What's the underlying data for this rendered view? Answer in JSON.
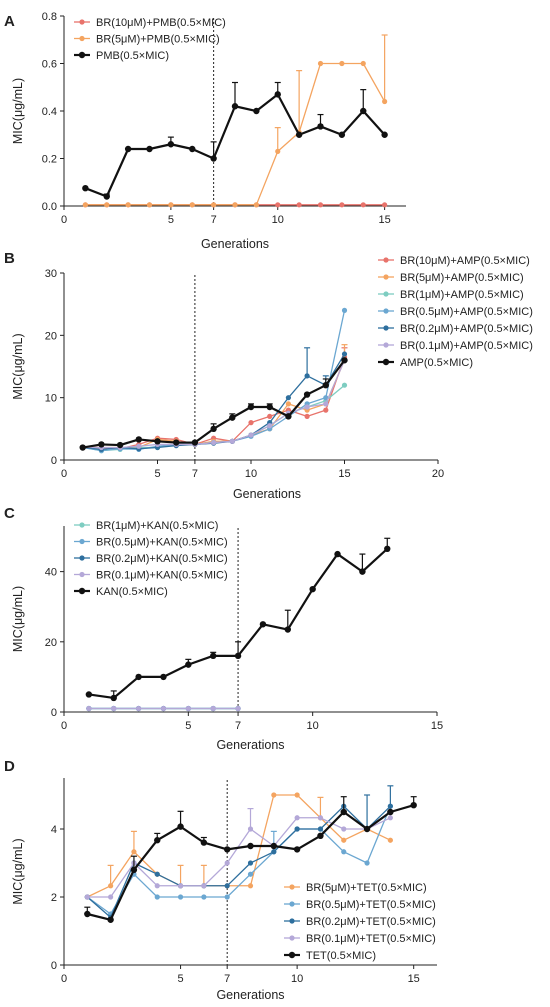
{
  "chart_data": [
    {
      "panel_label": "A",
      "type": "line",
      "xlabel": "Generations",
      "ylabel": "MIC(μg/mL)",
      "xlim": [
        0,
        16
      ],
      "ylim": [
        0,
        0.8
      ],
      "xticks": [
        0,
        5,
        7,
        10,
        15
      ],
      "yticks": [
        0.0,
        0.2,
        0.4,
        0.6,
        0.8
      ],
      "ytick_decimals": 1,
      "vline_x": 7,
      "legend_position": "top-left",
      "series": [
        {
          "name": "BR(10μM)+PMB(0.5×MIC)",
          "color": "#e8736b",
          "x": [
            1,
            2,
            3,
            4,
            5,
            6,
            7,
            8,
            9,
            10,
            11,
            12,
            13,
            14,
            15
          ],
          "y": [
            0.005,
            0.005,
            0.005,
            0.005,
            0.005,
            0.005,
            0.005,
            0.005,
            0.005,
            0.005,
            0.005,
            0.005,
            0.005,
            0.005,
            0.005
          ]
        },
        {
          "name": "BR(5μM)+PMB(0.5×MIC)",
          "color": "#f4a460",
          "x": [
            1,
            2,
            3,
            4,
            5,
            6,
            7,
            8,
            9,
            10,
            11,
            12,
            13,
            14,
            15
          ],
          "y": [
            0.005,
            0.005,
            0.005,
            0.005,
            0.005,
            0.005,
            0.005,
            0.005,
            0.005,
            0.23,
            0.31,
            0.6,
            0.6,
            0.6,
            0.44
          ],
          "err": [
            0,
            0,
            0,
            0,
            0,
            0,
            0,
            0,
            0,
            0.1,
            0.26,
            0,
            0,
            0,
            0.28
          ]
        },
        {
          "name": "PMB(0.5×MIC)",
          "color": "#111111",
          "bold": true,
          "x": [
            1,
            2,
            3,
            4,
            5,
            6,
            7,
            8,
            9,
            10,
            11,
            12,
            13,
            14,
            15
          ],
          "y": [
            0.075,
            0.04,
            0.24,
            0.24,
            0.26,
            0.24,
            0.2,
            0.42,
            0.4,
            0.47,
            0.3,
            0.335,
            0.3,
            0.4,
            0.3
          ],
          "err": [
            0,
            0.01,
            0,
            0,
            0.03,
            0,
            0.07,
            0.1,
            0,
            0.05,
            0,
            0.05,
            0,
            0.09,
            0
          ]
        }
      ]
    },
    {
      "panel_label": "B",
      "type": "line",
      "xlabel": "Generations",
      "ylabel": "MIC(μg/mL)",
      "xlim": [
        0,
        20
      ],
      "ylim": [
        0,
        30
      ],
      "xticks": [
        0,
        5,
        7,
        10,
        15,
        20
      ],
      "yticks": [
        0,
        10,
        20,
        30
      ],
      "ytick_decimals": 0,
      "vline_x": 7,
      "legend_position": "right",
      "series": [
        {
          "name": "BR(10μM)+AMP(0.5×MIC)",
          "color": "#e8736b",
          "x": [
            1,
            2,
            3,
            4,
            5,
            6,
            7,
            8,
            9,
            10,
            11,
            12,
            13,
            14,
            15
          ],
          "y": [
            2,
            2,
            1.8,
            2.5,
            3.5,
            3.3,
            2.5,
            3.5,
            3,
            6,
            7,
            8,
            7,
            8,
            16.5
          ],
          "err": [
            0,
            0,
            0,
            0,
            0,
            0,
            0,
            0,
            0,
            0,
            0,
            0,
            0,
            0,
            1.5
          ]
        },
        {
          "name": "BR(5μM)+AMP(0.5×MIC)",
          "color": "#f4a460",
          "x": [
            1,
            2,
            3,
            4,
            5,
            6,
            7,
            8,
            9,
            10,
            11,
            12,
            13,
            14,
            15
          ],
          "y": [
            2,
            2,
            2,
            2,
            3.3,
            3,
            2.5,
            3,
            3,
            4,
            5,
            9,
            8,
            9,
            16
          ],
          "err": [
            0,
            0,
            0,
            0,
            0,
            0,
            0,
            0,
            0,
            0,
            0,
            0,
            0,
            0,
            2.5
          ]
        },
        {
          "name": "BR(1μM)+AMP(0.5×MIC)",
          "color": "#7ecdc1",
          "x": [
            1,
            2,
            3,
            4,
            5,
            6,
            7,
            8,
            9,
            10,
            11,
            12,
            13,
            14,
            15
          ],
          "y": [
            2,
            1.5,
            1.7,
            2,
            2,
            2.5,
            2.5,
            2.8,
            3,
            4,
            5.5,
            7.5,
            8.5,
            9.5,
            12
          ]
        },
        {
          "name": "BR(0.5μM)+AMP(0.5×MIC)",
          "color": "#6ba7d1",
          "x": [
            1,
            2,
            3,
            4,
            5,
            6,
            7,
            8,
            9,
            10,
            11,
            12,
            13,
            14,
            15
          ],
          "y": [
            2,
            1.5,
            1.8,
            1.7,
            2.2,
            2.5,
            2.5,
            2.8,
            3,
            3.8,
            5,
            7,
            9,
            10,
            24
          ]
        },
        {
          "name": "BR(0.2μM)+AMP(0.5×MIC)",
          "color": "#2e6f9e",
          "x": [
            1,
            2,
            3,
            4,
            5,
            6,
            7,
            8,
            9,
            10,
            11,
            12,
            13,
            14,
            15
          ],
          "y": [
            2,
            1.7,
            2,
            1.8,
            2,
            2.3,
            2.5,
            2.7,
            3,
            4,
            6,
            10,
            13.5,
            12,
            17
          ],
          "err": [
            0,
            0,
            0,
            0,
            0,
            0,
            0,
            0,
            0,
            0,
            0,
            0,
            4.5,
            1.5,
            0
          ]
        },
        {
          "name": "BR(0.1μM)+AMP(0.5×MIC)",
          "color": "#b4a8d8",
          "x": [
            1,
            2,
            3,
            4,
            5,
            6,
            7,
            8,
            9,
            10,
            11,
            12,
            13,
            14,
            15
          ],
          "y": [
            2,
            2,
            2,
            2.2,
            2.5,
            2.5,
            2.5,
            2.8,
            3,
            4,
            5.5,
            7.5,
            8.5,
            9,
            16
          ]
        },
        {
          "name": "AMP(0.5×MIC)",
          "color": "#111111",
          "bold": true,
          "x": [
            1,
            2,
            3,
            4,
            5,
            6,
            7,
            8,
            9,
            10,
            11,
            12,
            13,
            14,
            15
          ],
          "y": [
            2,
            2.5,
            2.4,
            3.3,
            3,
            2.8,
            2.8,
            5,
            6.8,
            8.5,
            8.5,
            7,
            10.5,
            12,
            16
          ],
          "err": [
            0,
            0,
            0,
            0,
            0,
            0,
            0,
            0.8,
            0.6,
            0.5,
            0.5,
            0,
            0,
            1,
            0
          ]
        }
      ]
    },
    {
      "panel_label": "C",
      "type": "line",
      "xlabel": "Generations",
      "ylabel": "MIC(μg/mL)",
      "xlim": [
        0,
        15
      ],
      "ylim": [
        0,
        53
      ],
      "xticks": [
        0,
        5,
        7,
        10,
        15
      ],
      "yticks": [
        0,
        20,
        40
      ],
      "ytick_decimals": 0,
      "vline_x": 7,
      "legend_position": "top-left",
      "series": [
        {
          "name": "BR(1μM)+KAN(0.5×MIC)",
          "color": "#7ecdc1",
          "x": [
            1,
            2,
            3,
            4,
            5,
            6,
            7
          ],
          "y": [
            1,
            1,
            1,
            1,
            1,
            1,
            1
          ]
        },
        {
          "name": "BR(0.5μM)+KAN(0.5×MIC)",
          "color": "#6ba7d1",
          "x": [
            1,
            2,
            3,
            4,
            5,
            6,
            7
          ],
          "y": [
            1,
            1,
            1,
            1,
            1,
            1,
            1
          ]
        },
        {
          "name": "BR(0.2μM)+KAN(0.5×MIC)",
          "color": "#2e6f9e",
          "x": [
            1,
            2,
            3,
            4,
            5,
            6,
            7
          ],
          "y": [
            1,
            1,
            1,
            1,
            1,
            1,
            1
          ]
        },
        {
          "name": "BR(0.1μM)+KAN(0.5×MIC)",
          "color": "#b4a8d8",
          "x": [
            1,
            2,
            3,
            4,
            5,
            6,
            7
          ],
          "y": [
            1,
            1,
            1,
            1,
            1,
            1,
            1
          ]
        },
        {
          "name": "KAN(0.5×MIC)",
          "color": "#111111",
          "bold": true,
          "x": [
            1,
            2,
            3,
            4,
            5,
            6,
            7,
            8,
            9,
            10,
            11,
            12,
            13,
            14
          ],
          "y": [
            5,
            4,
            10,
            10,
            13.5,
            16,
            16,
            25,
            23.5,
            35,
            45,
            40,
            46.5,
            null
          ],
          "err": [
            0,
            2,
            0,
            0,
            1.5,
            1,
            4,
            0,
            5.5,
            0,
            0,
            5,
            3,
            0
          ]
        }
      ]
    },
    {
      "panel_label": "D",
      "type": "line",
      "xlabel": "Generations",
      "ylabel": "MIC(μg/mL)",
      "xlim": [
        0,
        16
      ],
      "ylim": [
        0,
        5.5
      ],
      "xticks": [
        0,
        5,
        7,
        10,
        15
      ],
      "yticks": [
        0,
        2,
        4
      ],
      "ytick_decimals": 0,
      "vline_x": 7,
      "legend_position": "bottom-right",
      "series": [
        {
          "name": "BR(5μM)+TET(0.5×MIC)",
          "color": "#f4a460",
          "x": [
            1,
            2,
            3,
            4,
            5,
            6,
            7,
            8,
            9,
            10,
            11,
            12,
            13,
            14
          ],
          "y": [
            2,
            2.33,
            3.33,
            2.67,
            2.33,
            2.33,
            2.33,
            2.33,
            5,
            5,
            4.33,
            3.67,
            4,
            3.67
          ],
          "err": [
            0,
            0.6,
            0.6,
            0,
            0.6,
            0.6,
            0,
            0,
            0,
            0,
            0.6,
            0,
            0,
            0
          ]
        },
        {
          "name": "BR(0.5μM)+TET(0.5×MIC)",
          "color": "#6ba7d1",
          "x": [
            1,
            2,
            3,
            4,
            5,
            6,
            7,
            8,
            9,
            10,
            11,
            12,
            13,
            14
          ],
          "y": [
            2,
            1.5,
            2.67,
            2,
            2,
            2,
            2,
            2.67,
            3.33,
            4,
            4,
            3.33,
            3,
            4.67
          ],
          "err": [
            0,
            0,
            0,
            0,
            0,
            0,
            0,
            0,
            0.6,
            0,
            0,
            0,
            0,
            0
          ]
        },
        {
          "name": "BR(0.2μM)+TET(0.5×MIC)",
          "color": "#2e6f9e",
          "x": [
            1,
            2,
            3,
            4,
            5,
            6,
            7,
            8,
            9,
            10,
            11,
            12,
            13,
            14
          ],
          "y": [
            2,
            1.4,
            3,
            2.67,
            2.33,
            2.33,
            2.33,
            3,
            3.33,
            4,
            4,
            4.67,
            4,
            4.67
          ],
          "err": [
            0,
            0,
            0,
            0,
            0,
            0,
            0,
            0,
            0,
            0,
            0,
            0,
            1,
            0.6
          ]
        },
        {
          "name": "BR(0.1μM)+TET(0.5×MIC)",
          "color": "#b4a8d8",
          "x": [
            1,
            2,
            3,
            4,
            5,
            6,
            7,
            8,
            9,
            10,
            11,
            12,
            13,
            14
          ],
          "y": [
            2,
            2,
            3,
            2.33,
            2.33,
            2.33,
            3,
            4,
            3.5,
            4.33,
            4.33,
            4,
            4,
            4.33
          ],
          "err": [
            0,
            0,
            0,
            0,
            0,
            0,
            0,
            0.6,
            0,
            0,
            0,
            0,
            0,
            0
          ]
        },
        {
          "name": "TET(0.5×MIC)",
          "color": "#111111",
          "bold": true,
          "x": [
            1,
            2,
            3,
            4,
            5,
            6,
            7,
            8,
            9,
            10,
            11,
            12,
            13,
            14,
            15
          ],
          "y": [
            1.5,
            1.33,
            2.8,
            3.67,
            4.07,
            3.6,
            3.4,
            3.5,
            3.5,
            3.4,
            3.8,
            4.5,
            4,
            4.5,
            4.7
          ],
          "err": [
            0.2,
            0,
            0.4,
            0.2,
            0.45,
            0.15,
            0,
            0,
            0,
            0,
            0,
            0.45,
            0,
            0,
            0.25
          ]
        }
      ]
    }
  ]
}
